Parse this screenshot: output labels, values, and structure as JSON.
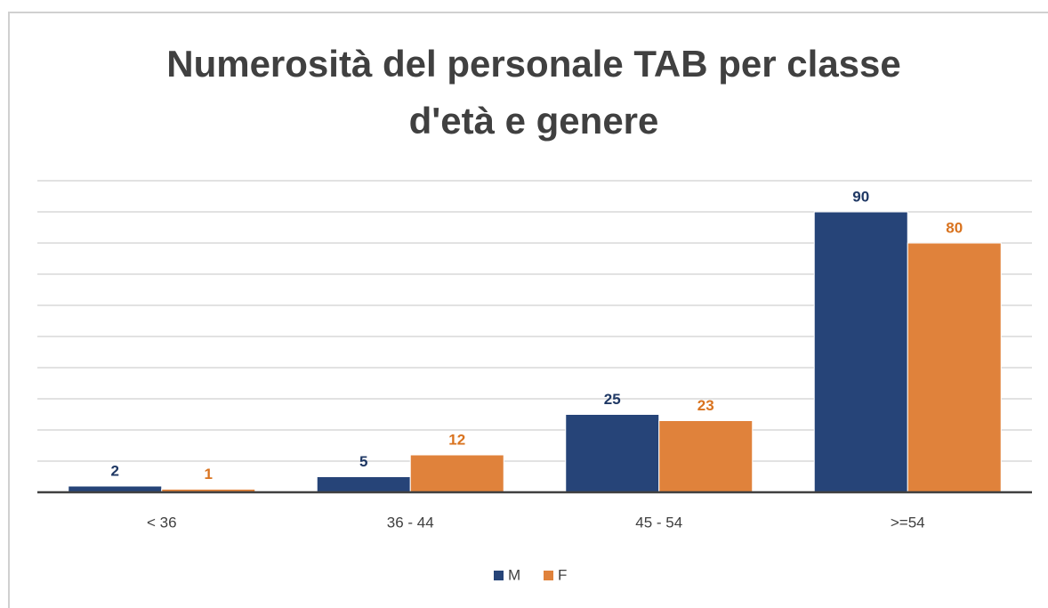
{
  "chart_data": {
    "type": "bar",
    "title": "Numerosità del personale TAB per classe d'età e genere",
    "categories": [
      "< 36",
      "36 - 44",
      "45 - 54",
      ">=54"
    ],
    "series": [
      {
        "name": "M",
        "color": "#264478",
        "values": [
          2,
          5,
          25,
          90
        ]
      },
      {
        "name": "F",
        "color": "#e0823b",
        "values": [
          1,
          12,
          23,
          80
        ]
      }
    ],
    "ylim": [
      0,
      100
    ],
    "yticks": [
      0,
      10,
      20,
      30,
      40,
      50,
      60,
      70,
      80,
      90,
      100
    ],
    "grid": true,
    "legend": "bottom"
  }
}
